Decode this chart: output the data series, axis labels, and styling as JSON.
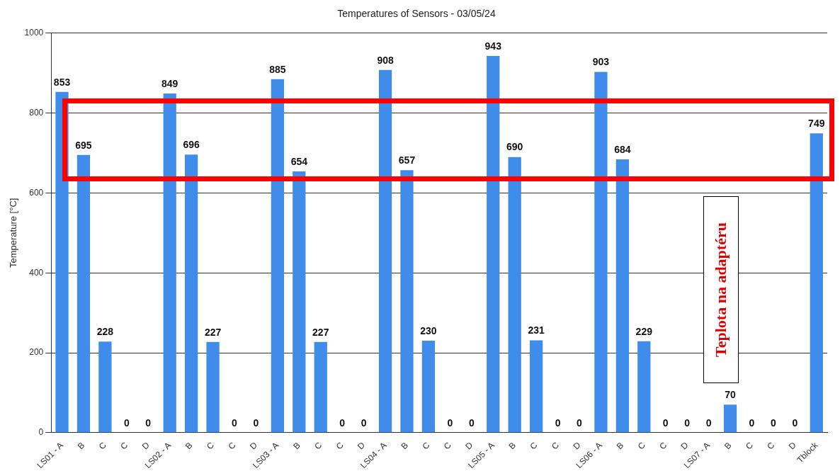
{
  "chart_data": {
    "type": "bar",
    "title": "Temperatures of Sensors - 03/05/24",
    "ylabel": "Temperature [°C]",
    "categories": [
      "LS01 - A",
      "B",
      "C",
      "C",
      "D",
      "LS02 - A",
      "B",
      "C",
      "C",
      "D",
      "LS03 - A",
      "B",
      "C",
      "C",
      "D",
      "LS04 - A",
      "B",
      "C",
      "C",
      "D",
      "LS05 - A",
      "B",
      "C",
      "C",
      "D",
      "LS06 - A",
      "B",
      "C",
      "C",
      "D",
      "LS07 - A",
      "B",
      "C",
      "C",
      "D",
      "Tblock"
    ],
    "values": [
      853,
      695,
      228,
      0,
      0,
      849,
      696,
      227,
      0,
      0,
      885,
      654,
      227,
      0,
      0,
      908,
      657,
      230,
      0,
      0,
      943,
      690,
      231,
      0,
      0,
      903,
      684,
      229,
      0,
      0,
      0,
      70,
      0,
      0,
      0,
      749
    ],
    "color": "#3f8ceb",
    "ylim": [
      0,
      1000
    ],
    "yticks": [
      0,
      200,
      400,
      600,
      800,
      1000
    ],
    "grid": "y",
    "legend": false,
    "data_labels": true,
    "annotations": [
      "Teplota na adaptéru"
    ]
  }
}
